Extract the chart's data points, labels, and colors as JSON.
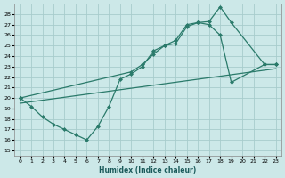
{
  "xlabel": "Humidex (Indice chaleur)",
  "background_color": "#cce8e8",
  "grid_color": "#a8cccc",
  "line_color": "#2a7a6a",
  "xlim": [
    -0.5,
    23.5
  ],
  "ylim": [
    14.5,
    29.0
  ],
  "xticks": [
    0,
    1,
    2,
    3,
    4,
    5,
    6,
    7,
    8,
    9,
    10,
    11,
    12,
    13,
    14,
    15,
    16,
    17,
    18,
    19,
    20,
    21,
    22,
    23
  ],
  "yticks": [
    15,
    16,
    17,
    18,
    19,
    20,
    21,
    22,
    23,
    24,
    25,
    26,
    27,
    28
  ],
  "line1_x": [
    0,
    10,
    11,
    12,
    13,
    14,
    15,
    16,
    17,
    18,
    19,
    22,
    23
  ],
  "line1_y": [
    20.0,
    22.5,
    23.2,
    24.2,
    25.0,
    25.2,
    26.8,
    27.2,
    27.3,
    28.7,
    27.2,
    23.2,
    23.2
  ],
  "line2_x": [
    0,
    1,
    2,
    3,
    4,
    5,
    6,
    7,
    8,
    9,
    10,
    11,
    12,
    13,
    14,
    15,
    16,
    17,
    18,
    19,
    22,
    23
  ],
  "line2_y": [
    20.0,
    19.2,
    18.2,
    17.5,
    17.0,
    16.5,
    16.0,
    17.3,
    19.2,
    21.8,
    22.3,
    23.0,
    24.5,
    25.0,
    25.5,
    27.0,
    27.2,
    27.0,
    26.0,
    21.5,
    23.2,
    23.2
  ],
  "line3_x": [
    0,
    23
  ],
  "line3_y": [
    19.5,
    22.8
  ]
}
